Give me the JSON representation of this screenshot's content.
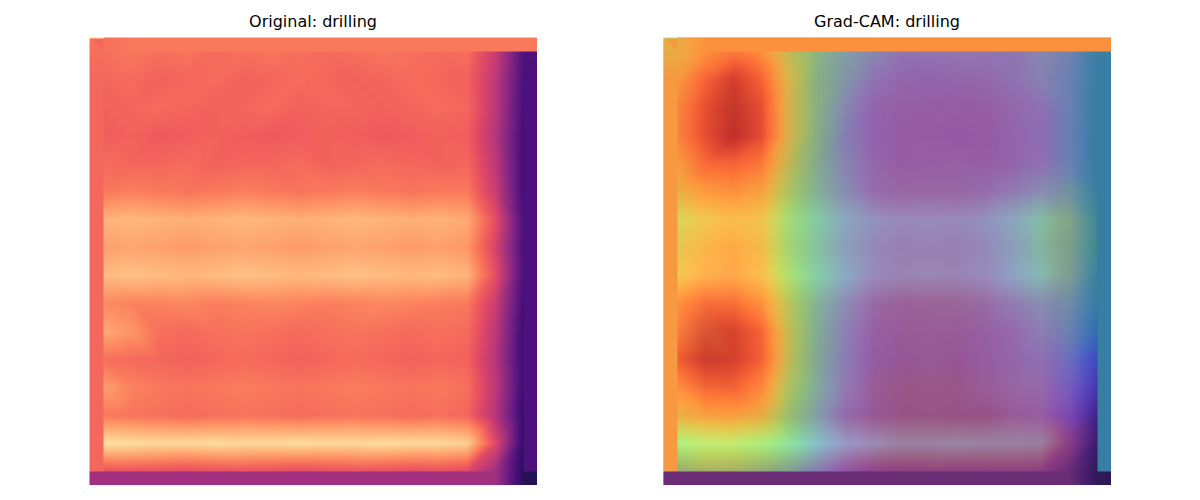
{
  "chart_data": [
    {
      "type": "heatmap",
      "title": "Original: drilling",
      "tick_labels": false,
      "clim": [
        0,
        1
      ],
      "cells": [
        [
          0.7,
          0.72,
          0.7,
          0.71,
          0.69,
          0.7,
          0.71,
          0.7,
          0.69,
          0.7,
          0.71,
          0.7,
          0.69,
          0.7,
          0.55,
          0.25
        ],
        [
          0.68,
          0.69,
          0.67,
          0.68,
          0.69,
          0.67,
          0.68,
          0.69,
          0.68,
          0.67,
          0.68,
          0.69,
          0.68,
          0.67,
          0.52,
          0.24
        ],
        [
          0.67,
          0.68,
          0.69,
          0.68,
          0.67,
          0.68,
          0.69,
          0.67,
          0.68,
          0.68,
          0.67,
          0.68,
          0.69,
          0.68,
          0.52,
          0.23
        ],
        [
          0.66,
          0.67,
          0.65,
          0.66,
          0.67,
          0.66,
          0.65,
          0.66,
          0.67,
          0.66,
          0.65,
          0.66,
          0.67,
          0.66,
          0.5,
          0.22
        ],
        [
          0.69,
          0.68,
          0.68,
          0.69,
          0.67,
          0.68,
          0.68,
          0.69,
          0.67,
          0.68,
          0.69,
          0.68,
          0.67,
          0.68,
          0.52,
          0.22
        ],
        [
          0.72,
          0.73,
          0.72,
          0.71,
          0.72,
          0.73,
          0.72,
          0.71,
          0.72,
          0.73,
          0.72,
          0.71,
          0.72,
          0.72,
          0.55,
          0.22
        ],
        [
          0.84,
          0.85,
          0.84,
          0.83,
          0.84,
          0.85,
          0.84,
          0.83,
          0.84,
          0.85,
          0.84,
          0.83,
          0.84,
          0.82,
          0.62,
          0.24
        ],
        [
          0.8,
          0.81,
          0.8,
          0.79,
          0.8,
          0.81,
          0.8,
          0.79,
          0.8,
          0.81,
          0.8,
          0.79,
          0.8,
          0.78,
          0.58,
          0.23
        ],
        [
          0.86,
          0.87,
          0.86,
          0.85,
          0.86,
          0.87,
          0.86,
          0.85,
          0.86,
          0.87,
          0.86,
          0.85,
          0.86,
          0.84,
          0.62,
          0.24
        ],
        [
          0.76,
          0.74,
          0.74,
          0.75,
          0.73,
          0.74,
          0.75,
          0.74,
          0.73,
          0.74,
          0.75,
          0.74,
          0.73,
          0.72,
          0.55,
          0.22
        ],
        [
          0.82,
          0.78,
          0.7,
          0.69,
          0.7,
          0.71,
          0.7,
          0.69,
          0.7,
          0.71,
          0.7,
          0.69,
          0.7,
          0.69,
          0.52,
          0.2
        ],
        [
          0.7,
          0.69,
          0.68,
          0.67,
          0.68,
          0.69,
          0.68,
          0.67,
          0.68,
          0.69,
          0.68,
          0.67,
          0.68,
          0.67,
          0.5,
          0.2
        ],
        [
          0.8,
          0.74,
          0.72,
          0.71,
          0.72,
          0.73,
          0.72,
          0.71,
          0.72,
          0.73,
          0.72,
          0.71,
          0.72,
          0.7,
          0.52,
          0.2
        ],
        [
          0.72,
          0.71,
          0.7,
          0.69,
          0.7,
          0.71,
          0.7,
          0.69,
          0.7,
          0.71,
          0.7,
          0.69,
          0.7,
          0.68,
          0.5,
          0.18
        ],
        [
          0.94,
          0.93,
          0.92,
          0.92,
          0.93,
          0.92,
          0.92,
          0.93,
          0.92,
          0.92,
          0.93,
          0.92,
          0.92,
          0.9,
          0.6,
          0.18
        ],
        [
          0.62,
          0.63,
          0.62,
          0.61,
          0.62,
          0.63,
          0.62,
          0.61,
          0.62,
          0.63,
          0.62,
          0.61,
          0.62,
          0.6,
          0.45,
          0.15
        ]
      ]
    },
    {
      "type": "heatmap",
      "title": "Grad-CAM: drilling",
      "tick_labels": false,
      "clim": [
        0,
        1
      ],
      "cells": [
        [
          0.7,
          0.72,
          0.7,
          0.71,
          0.69,
          0.7,
          0.71,
          0.7,
          0.69,
          0.7,
          0.71,
          0.7,
          0.69,
          0.7,
          0.55,
          0.25
        ],
        [
          0.68,
          0.69,
          0.67,
          0.68,
          0.69,
          0.67,
          0.68,
          0.69,
          0.68,
          0.67,
          0.68,
          0.69,
          0.68,
          0.67,
          0.52,
          0.24
        ],
        [
          0.67,
          0.68,
          0.69,
          0.68,
          0.67,
          0.68,
          0.69,
          0.67,
          0.68,
          0.68,
          0.67,
          0.68,
          0.69,
          0.68,
          0.52,
          0.23
        ],
        [
          0.66,
          0.67,
          0.65,
          0.66,
          0.67,
          0.66,
          0.65,
          0.66,
          0.67,
          0.66,
          0.65,
          0.66,
          0.67,
          0.66,
          0.5,
          0.22
        ],
        [
          0.69,
          0.68,
          0.68,
          0.69,
          0.67,
          0.68,
          0.68,
          0.69,
          0.67,
          0.68,
          0.69,
          0.68,
          0.67,
          0.68,
          0.52,
          0.22
        ],
        [
          0.72,
          0.73,
          0.72,
          0.71,
          0.72,
          0.73,
          0.72,
          0.71,
          0.72,
          0.73,
          0.72,
          0.71,
          0.72,
          0.72,
          0.55,
          0.22
        ],
        [
          0.84,
          0.85,
          0.84,
          0.83,
          0.84,
          0.85,
          0.84,
          0.83,
          0.84,
          0.85,
          0.84,
          0.83,
          0.84,
          0.82,
          0.62,
          0.24
        ],
        [
          0.8,
          0.81,
          0.8,
          0.79,
          0.8,
          0.81,
          0.8,
          0.79,
          0.8,
          0.81,
          0.8,
          0.79,
          0.8,
          0.78,
          0.58,
          0.23
        ],
        [
          0.86,
          0.87,
          0.86,
          0.85,
          0.86,
          0.87,
          0.86,
          0.85,
          0.86,
          0.87,
          0.86,
          0.85,
          0.86,
          0.84,
          0.62,
          0.24
        ],
        [
          0.76,
          0.74,
          0.74,
          0.75,
          0.73,
          0.74,
          0.75,
          0.74,
          0.73,
          0.74,
          0.75,
          0.74,
          0.73,
          0.72,
          0.55,
          0.22
        ],
        [
          0.82,
          0.78,
          0.7,
          0.69,
          0.7,
          0.71,
          0.7,
          0.69,
          0.7,
          0.71,
          0.7,
          0.69,
          0.7,
          0.69,
          0.52,
          0.2
        ],
        [
          0.7,
          0.69,
          0.68,
          0.67,
          0.68,
          0.69,
          0.68,
          0.67,
          0.68,
          0.69,
          0.68,
          0.67,
          0.68,
          0.67,
          0.5,
          0.2
        ],
        [
          0.8,
          0.74,
          0.72,
          0.71,
          0.72,
          0.73,
          0.72,
          0.71,
          0.72,
          0.73,
          0.72,
          0.71,
          0.72,
          0.7,
          0.52,
          0.2
        ],
        [
          0.72,
          0.71,
          0.7,
          0.69,
          0.7,
          0.71,
          0.7,
          0.69,
          0.7,
          0.71,
          0.7,
          0.69,
          0.7,
          0.68,
          0.5,
          0.18
        ],
        [
          0.94,
          0.93,
          0.92,
          0.92,
          0.93,
          0.92,
          0.92,
          0.93,
          0.92,
          0.92,
          0.93,
          0.92,
          0.92,
          0.9,
          0.6,
          0.18
        ],
        [
          0.62,
          0.63,
          0.62,
          0.61,
          0.62,
          0.63,
          0.62,
          0.61,
          0.62,
          0.63,
          0.62,
          0.61,
          0.62,
          0.6,
          0.45,
          0.15
        ]
      ],
      "overlay": [
        [
          0.6,
          0.7,
          0.75,
          0.7,
          0.5,
          0.35,
          0.25,
          0.2,
          0.15,
          0.15,
          0.15,
          0.15,
          0.15,
          0.2,
          0.25,
          0.3
        ],
        [
          0.65,
          0.8,
          0.9,
          0.8,
          0.55,
          0.35,
          0.25,
          0.15,
          0.12,
          0.12,
          0.12,
          0.12,
          0.15,
          0.2,
          0.25,
          0.3
        ],
        [
          0.7,
          0.85,
          0.95,
          0.85,
          0.55,
          0.35,
          0.2,
          0.12,
          0.1,
          0.1,
          0.1,
          0.1,
          0.12,
          0.15,
          0.25,
          0.3
        ],
        [
          0.7,
          0.85,
          0.95,
          0.85,
          0.55,
          0.35,
          0.2,
          0.12,
          0.1,
          0.1,
          0.1,
          0.1,
          0.12,
          0.15,
          0.25,
          0.3
        ],
        [
          0.65,
          0.78,
          0.8,
          0.75,
          0.5,
          0.32,
          0.2,
          0.12,
          0.1,
          0.1,
          0.1,
          0.1,
          0.12,
          0.15,
          0.25,
          0.3
        ],
        [
          0.6,
          0.68,
          0.7,
          0.65,
          0.45,
          0.3,
          0.2,
          0.12,
          0.1,
          0.1,
          0.1,
          0.12,
          0.15,
          0.2,
          0.3,
          0.32
        ],
        [
          0.55,
          0.62,
          0.65,
          0.62,
          0.42,
          0.3,
          0.2,
          0.15,
          0.12,
          0.12,
          0.12,
          0.15,
          0.2,
          0.28,
          0.35,
          0.35
        ],
        [
          0.58,
          0.65,
          0.68,
          0.62,
          0.42,
          0.3,
          0.2,
          0.15,
          0.12,
          0.12,
          0.12,
          0.15,
          0.2,
          0.28,
          0.35,
          0.35
        ],
        [
          0.62,
          0.7,
          0.72,
          0.65,
          0.45,
          0.3,
          0.2,
          0.12,
          0.1,
          0.1,
          0.1,
          0.12,
          0.18,
          0.25,
          0.32,
          0.32
        ],
        [
          0.72,
          0.8,
          0.8,
          0.72,
          0.48,
          0.3,
          0.18,
          0.1,
          0.08,
          0.08,
          0.08,
          0.1,
          0.15,
          0.2,
          0.28,
          0.3
        ],
        [
          0.8,
          0.9,
          0.9,
          0.8,
          0.5,
          0.3,
          0.18,
          0.1,
          0.08,
          0.08,
          0.08,
          0.1,
          0.12,
          0.18,
          0.25,
          0.25
        ],
        [
          0.82,
          0.92,
          0.9,
          0.8,
          0.5,
          0.3,
          0.18,
          0.1,
          0.08,
          0.08,
          0.08,
          0.1,
          0.12,
          0.15,
          0.2,
          0.15
        ],
        [
          0.75,
          0.82,
          0.82,
          0.72,
          0.45,
          0.28,
          0.15,
          0.08,
          0.06,
          0.06,
          0.06,
          0.08,
          0.1,
          0.12,
          0.15,
          0.1
        ],
        [
          0.6,
          0.65,
          0.65,
          0.6,
          0.4,
          0.25,
          0.12,
          0.08,
          0.06,
          0.06,
          0.06,
          0.06,
          0.08,
          0.1,
          0.1,
          0.05
        ],
        [
          0.45,
          0.5,
          0.5,
          0.45,
          0.35,
          0.22,
          0.12,
          0.08,
          0.06,
          0.06,
          0.06,
          0.06,
          0.06,
          0.06,
          0.05,
          0.03
        ],
        [
          0.4,
          0.45,
          0.45,
          0.4,
          0.32,
          0.2,
          0.1,
          0.06,
          0.05,
          0.05,
          0.05,
          0.05,
          0.05,
          0.05,
          0.03,
          0.02
        ]
      ]
    }
  ]
}
